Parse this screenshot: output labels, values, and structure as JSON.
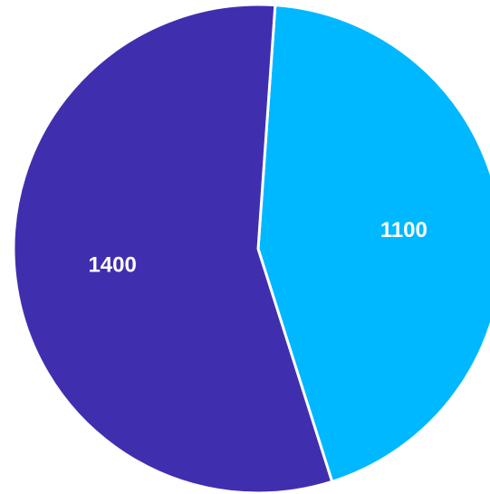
{
  "chart_data": {
    "type": "pie",
    "slices": [
      {
        "value": 1100,
        "label": "1100",
        "color": "#00B8FF"
      },
      {
        "value": 1400,
        "label": "1400",
        "color": "#3F2FAF"
      }
    ],
    "title": "",
    "legend": "none",
    "start_angle_deg": 4,
    "direction": "clockwise"
  }
}
